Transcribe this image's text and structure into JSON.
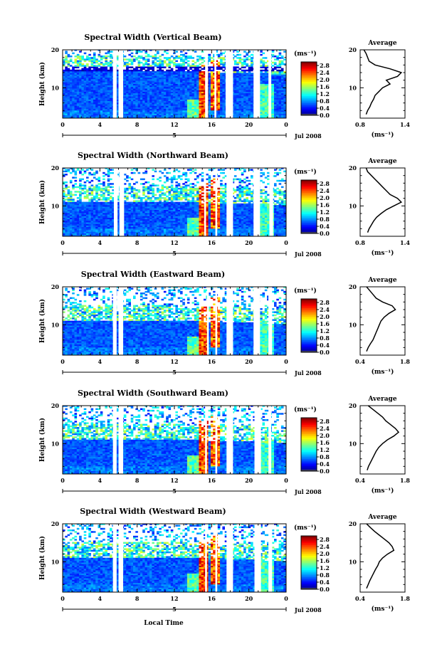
{
  "figure": {
    "x_axis_label": "Local Time",
    "y_axis_label": "Height (km)",
    "date_label": "Jul 2008",
    "day_label": "5",
    "colorbar_unit": "(ms⁻¹)",
    "profile_title": "Average",
    "profile_unit": "(ms⁻¹)"
  },
  "chart_data": [
    {
      "type": "heatmap",
      "title": "Spectral Width (Vertical Beam)",
      "x_ticks": [
        "0",
        "4",
        "8",
        "12",
        "16",
        "20",
        "0"
      ],
      "y_ticks": [
        "10",
        "20"
      ],
      "colorbar_ticks": [
        "0.0",
        "0.4",
        "0.8",
        "1.2",
        "1.6",
        "2.0",
        "2.4",
        "2.8"
      ],
      "xlim": [
        0,
        24
      ],
      "ylim": [
        2,
        20
      ],
      "clim": [
        0.0,
        3.0
      ],
      "gaps_hours": [
        [
          5.4,
          5.8
        ],
        [
          6.0,
          6.5
        ],
        [
          15.3,
          15.6
        ],
        [
          16.3,
          16.5
        ],
        [
          17.5,
          18.3
        ],
        [
          20.5,
          21.2
        ],
        [
          22.1,
          22.4
        ]
      ],
      "profile": {
        "title": "Average",
        "xlim": [
          0.8,
          1.4
        ],
        "x_ticks": [
          "0.8",
          "1.4"
        ],
        "y_ticks": [
          "10",
          "20"
        ],
        "heights": [
          3,
          4,
          5,
          6,
          7,
          8,
          9,
          10,
          11,
          12,
          13,
          14,
          15,
          16,
          17,
          18,
          19,
          20
        ],
        "values": [
          0.88,
          0.9,
          0.93,
          0.95,
          0.98,
          1.0,
          1.05,
          1.1,
          1.2,
          1.15,
          1.3,
          1.35,
          1.2,
          1.0,
          0.92,
          0.9,
          0.88,
          0.85
        ]
      }
    },
    {
      "type": "heatmap",
      "title": "Spectral Width (Northward Beam)",
      "x_ticks": [
        "0",
        "4",
        "8",
        "12",
        "16",
        "20",
        "0"
      ],
      "y_ticks": [
        "10",
        "20"
      ],
      "colorbar_ticks": [
        "0.0",
        "0.4",
        "0.8",
        "1.2",
        "1.6",
        "2.0",
        "2.4",
        "2.8"
      ],
      "xlim": [
        0,
        24
      ],
      "ylim": [
        2,
        20
      ],
      "clim": [
        0.0,
        3.0
      ],
      "gaps_hours": [
        [
          5.5,
          5.9
        ],
        [
          6.1,
          6.6
        ],
        [
          15.2,
          15.4
        ],
        [
          16.4,
          16.6
        ],
        [
          17.6,
          18.3
        ],
        [
          20.5,
          21.2
        ],
        [
          22.2,
          22.6
        ]
      ],
      "profile": {
        "title": "Average",
        "xlim": [
          0.8,
          1.4
        ],
        "x_ticks": [
          "0.8",
          "1.4"
        ],
        "y_ticks": [
          "10",
          "20"
        ],
        "heights": [
          3,
          4,
          5,
          6,
          7,
          8,
          9,
          10,
          11,
          12,
          13,
          14,
          15,
          16,
          17,
          18,
          19,
          20
        ],
        "values": [
          0.9,
          0.92,
          0.95,
          0.98,
          1.02,
          1.08,
          1.15,
          1.25,
          1.35,
          1.3,
          1.2,
          1.15,
          1.1,
          1.05,
          1.0,
          0.95,
          0.9,
          0.88
        ]
      }
    },
    {
      "type": "heatmap",
      "title": "Spectral Width (Eastward Beam)",
      "x_ticks": [
        "0",
        "4",
        "8",
        "12",
        "16",
        "20",
        "0"
      ],
      "y_ticks": [
        "10",
        "20"
      ],
      "colorbar_ticks": [
        "0.0",
        "0.4",
        "0.8",
        "1.2",
        "1.6",
        "2.0",
        "2.4",
        "2.8"
      ],
      "xlim": [
        0,
        24
      ],
      "ylim": [
        2,
        20
      ],
      "clim": [
        0.0,
        3.0
      ],
      "gaps_hours": [
        [
          5.4,
          5.8
        ],
        [
          6.0,
          6.5
        ],
        [
          15.5,
          15.7
        ],
        [
          16.4,
          16.6
        ],
        [
          17.6,
          18.3
        ],
        [
          20.5,
          21.2
        ],
        [
          22.1,
          22.5
        ]
      ],
      "profile": {
        "title": "Average",
        "xlim": [
          0.4,
          1.8
        ],
        "x_ticks": [
          "0.4",
          "1.8"
        ],
        "y_ticks": [
          "10",
          "20"
        ],
        "heights": [
          3,
          4,
          5,
          6,
          7,
          8,
          9,
          10,
          11,
          12,
          13,
          14,
          15,
          16,
          17,
          18,
          19,
          20
        ],
        "values": [
          0.6,
          0.65,
          0.72,
          0.8,
          0.85,
          0.9,
          0.95,
          1.0,
          1.05,
          1.15,
          1.3,
          1.5,
          1.4,
          1.1,
          0.9,
          0.8,
          0.7,
          0.6
        ]
      }
    },
    {
      "type": "heatmap",
      "title": "Spectral Width (Southward Beam)",
      "x_ticks": [
        "0",
        "4",
        "8",
        "12",
        "16",
        "20",
        "0"
      ],
      "y_ticks": [
        "10",
        "20"
      ],
      "colorbar_ticks": [
        "0.0",
        "0.4",
        "0.8",
        "1.2",
        "1.6",
        "2.0",
        "2.4",
        "2.8"
      ],
      "xlim": [
        0,
        24
      ],
      "ylim": [
        2,
        20
      ],
      "clim": [
        0.0,
        3.0
      ],
      "gaps_hours": [
        [
          5.4,
          5.8
        ],
        [
          6.0,
          6.5
        ],
        [
          15.3,
          15.5
        ],
        [
          16.4,
          16.6
        ],
        [
          17.6,
          18.3
        ],
        [
          20.6,
          21.3
        ],
        [
          22.1,
          22.4
        ]
      ],
      "profile": {
        "title": "Average",
        "xlim": [
          0.4,
          1.8
        ],
        "x_ticks": [
          "0.4",
          "1.8"
        ],
        "y_ticks": [
          "10",
          "20"
        ],
        "heights": [
          3,
          4,
          5,
          6,
          7,
          8,
          9,
          10,
          11,
          12,
          13,
          14,
          15,
          16,
          17,
          18,
          19,
          20
        ],
        "values": [
          0.62,
          0.66,
          0.72,
          0.78,
          0.84,
          0.9,
          0.98,
          1.1,
          1.25,
          1.45,
          1.6,
          1.5,
          1.35,
          1.2,
          1.1,
          0.95,
          0.8,
          0.65
        ]
      }
    },
    {
      "type": "heatmap",
      "title": "Spectral Width (Westward Beam)",
      "x_ticks": [
        "0",
        "4",
        "8",
        "12",
        "16",
        "20",
        "0"
      ],
      "y_ticks": [
        "10",
        "20"
      ],
      "colorbar_ticks": [
        "0.0",
        "0.4",
        "0.8",
        "1.2",
        "1.6",
        "2.0",
        "2.4",
        "2.8"
      ],
      "xlim": [
        0,
        24
      ],
      "ylim": [
        2,
        20
      ],
      "clim": [
        0.0,
        3.0
      ],
      "gaps_hours": [
        [
          5.4,
          5.8
        ],
        [
          6.0,
          6.5
        ],
        [
          15.3,
          15.5
        ],
        [
          16.4,
          16.6
        ],
        [
          17.6,
          18.3
        ],
        [
          20.6,
          21.3
        ],
        [
          22.1,
          22.5
        ]
      ],
      "profile": {
        "title": "Average",
        "xlim": [
          0.4,
          1.8
        ],
        "x_ticks": [
          "0.4",
          "1.8"
        ],
        "y_ticks": [
          "10",
          "20"
        ],
        "heights": [
          3,
          4,
          5,
          6,
          7,
          8,
          9,
          10,
          11,
          12,
          13,
          14,
          15,
          16,
          17,
          18,
          19,
          20
        ],
        "values": [
          0.6,
          0.65,
          0.7,
          0.76,
          0.82,
          0.88,
          0.95,
          1.0,
          1.1,
          1.25,
          1.45,
          1.4,
          1.3,
          1.15,
          1.0,
          0.85,
          0.72,
          0.6
        ]
      }
    }
  ]
}
